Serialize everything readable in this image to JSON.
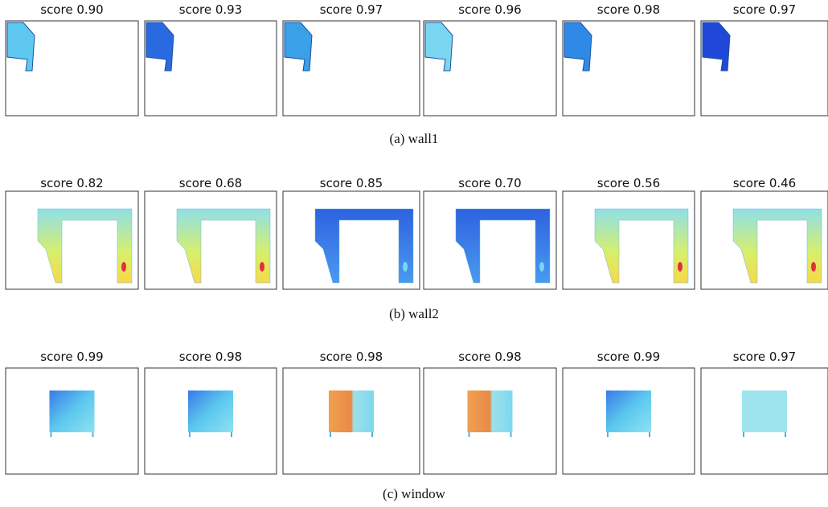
{
  "rows": [
    {
      "panels": [
        "score 0.90",
        "score 0.93",
        "score 0.97",
        "score 0.96",
        "score 0.98",
        "score 0.97"
      ],
      "caption": "(a) wall1"
    },
    {
      "panels": [
        "score 0.82",
        "score 0.68",
        "score 0.85",
        "score 0.70",
        "score 0.56",
        "score 0.46"
      ],
      "caption": "(b) wall2"
    },
    {
      "panels": [
        "score 0.99",
        "score 0.98",
        "score 0.98",
        "score 0.98",
        "score 0.99",
        "score 0.97"
      ],
      "caption": "(c) window"
    }
  ]
}
